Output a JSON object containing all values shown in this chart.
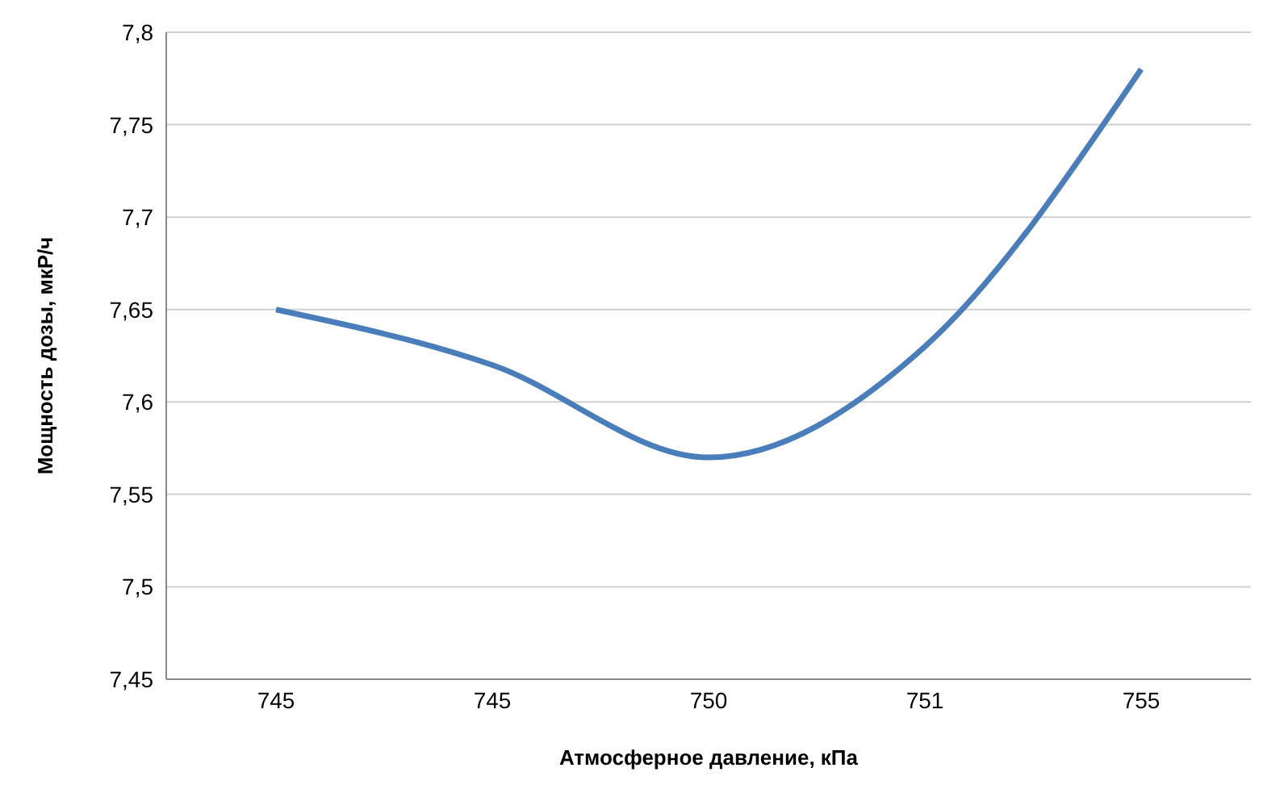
{
  "chart_data": {
    "type": "line",
    "xlabel": "Атмосферное давление, кПа",
    "ylabel": "Мощность дозы, мкР/ч",
    "categories": [
      "745",
      "745",
      "750",
      "751",
      "755"
    ],
    "series": [
      {
        "color": "#4a7ebb",
        "values": [
          7.65,
          7.62,
          7.57,
          7.63,
          7.78
        ]
      }
    ],
    "ylim": [
      7.45,
      7.8
    ],
    "yticks": [
      {
        "value": 7.45,
        "label": "7,45"
      },
      {
        "value": 7.5,
        "label": "7,5"
      },
      {
        "value": 7.55,
        "label": "7,55"
      },
      {
        "value": 7.6,
        "label": "7,6"
      },
      {
        "value": 7.65,
        "label": "7,65"
      },
      {
        "value": 7.7,
        "label": "7,7"
      },
      {
        "value": 7.75,
        "label": "7,75"
      },
      {
        "value": 7.8,
        "label": "7,8"
      }
    ],
    "grid": "y",
    "legend": false,
    "marker": "none",
    "line_style": "solid"
  }
}
